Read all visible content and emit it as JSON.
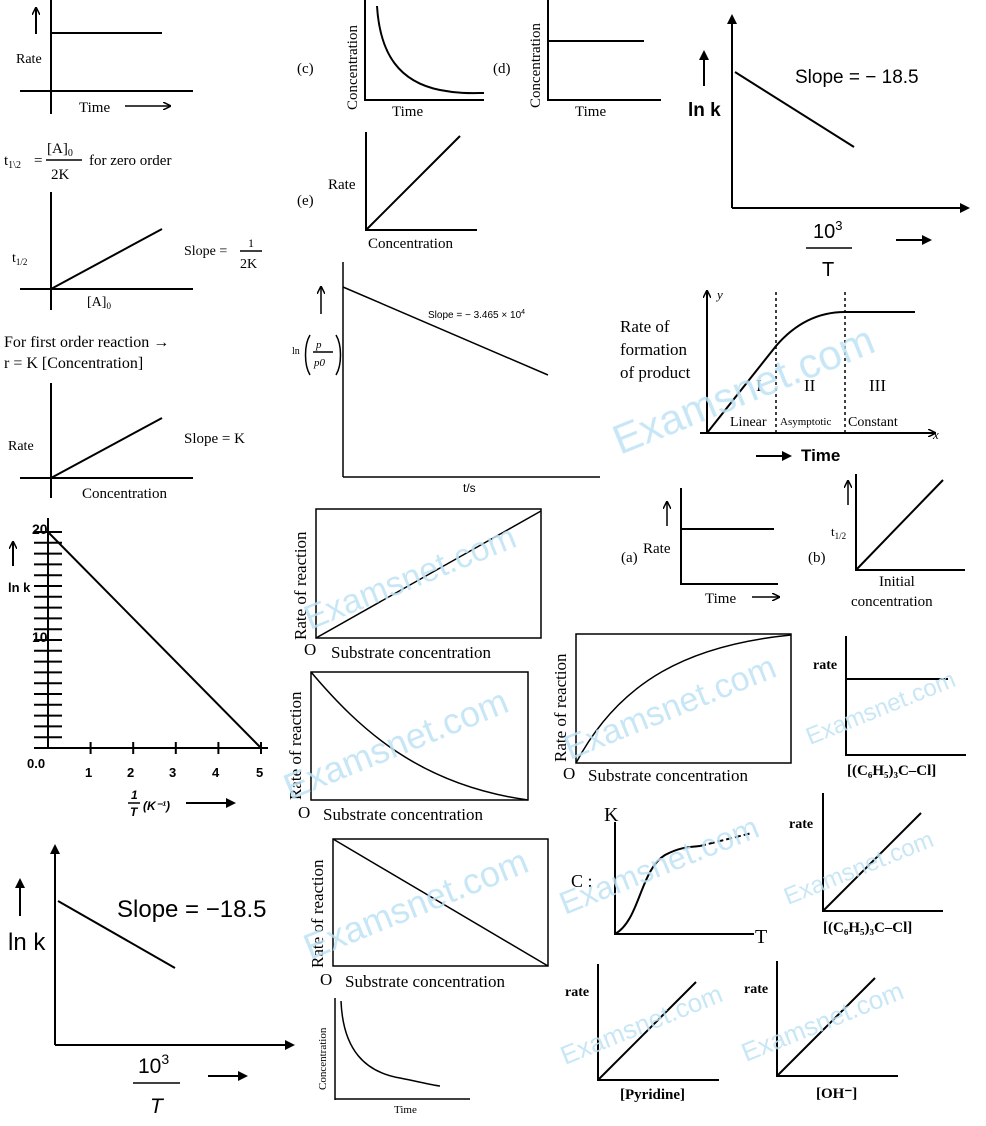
{
  "watermark": {
    "text": "Examsnet.com",
    "color": "#bfe3f5"
  },
  "p1": {
    "ylabel": "Rate",
    "xlabel": "Time"
  },
  "half_life": {
    "t": "t",
    "sub": "1\\2",
    "eq": "=",
    "num": "[A]",
    "num_sub": "0",
    "den": "2K",
    "note": "for  zero order"
  },
  "p2": {
    "ylabel": "t",
    "ylabel_sub": "1/2",
    "xlabel": "[A]",
    "xlabel_sub": "0",
    "slope": "Slope =",
    "slope_num": "1",
    "slope_den": "2K"
  },
  "first_order": {
    "line1": "For first order reaction →",
    "line2": "r = K [Concentration]"
  },
  "p3": {
    "ylabel": "Rate",
    "xlabel": "Concentration",
    "slope": "Slope = K"
  },
  "pc": {
    "tag": "(c)",
    "ylabel": "Concentration",
    "xlabel": "Time"
  },
  "pd": {
    "tag": "(d)",
    "ylabel": "Concentration",
    "xlabel": "Time"
  },
  "pe": {
    "tag": "(e)",
    "ylabel": "Rate",
    "xlabel": "Concentration"
  },
  "arr1": {
    "ylabel": "ln k",
    "slope": "Slope = − 18.5",
    "x_num": "10",
    "x_num_sup": "3",
    "x_den": "T"
  },
  "lnp": {
    "slope": "Slope = − 3.465 × 10",
    "slope_sup": "4",
    "ylabel_ln": "ln",
    "ylabel_p": "p",
    "ylabel_p0": "p0",
    "xlabel": "t/s"
  },
  "enzyme": {
    "ytitle1": "Rate of",
    "ytitle2": "formation",
    "ytitle3": "of product",
    "yaxis": "y",
    "xaxis": "x",
    "xlabel": "Time",
    "regions": [
      {
        "num": "I",
        "name": "Linear"
      },
      {
        "num": "II",
        "name": "Asymptotic"
      },
      {
        "num": "III",
        "name": "Constant"
      }
    ]
  },
  "pa": {
    "tag": "(a)",
    "ylabel": "Rate",
    "xlabel": "Time"
  },
  "pb": {
    "tag": "(b)",
    "ylabel": "t",
    "ylabel_sub": "1/2",
    "xlabel1": "Initial",
    "xlabel2": "concentration"
  },
  "lnk_chart": {
    "ylabel": "ln k",
    "xlabel_num": "1",
    "xlabel_den": "T",
    "xlabel_unit": "(K⁻¹)",
    "y_ticks": [
      "20",
      "10",
      "0.0"
    ],
    "x_ticks": [
      "1",
      "2",
      "3",
      "4",
      "5"
    ]
  },
  "sub1": {
    "ylabel": "Rate of reaction",
    "origin": "O",
    "xlabel": "Substrate concentration"
  },
  "sub2": {
    "ylabel": "Rate of reaction",
    "origin": "O",
    "xlabel": "Substrate concentration"
  },
  "sub3": {
    "ylabel": "Rate of reaction",
    "origin": "O",
    "xlabel": "Substrate concentration"
  },
  "sub4": {
    "ylabel": "Rate of reaction",
    "origin": "O",
    "xlabel": "Substrate concentration"
  },
  "trityl1": {
    "ylabel": "rate",
    "xlabel": "[(C₆H₅)₃C–Cl]"
  },
  "trityl2": {
    "ylabel": "rate",
    "xlabel": "[(C₆H₅)₃C–Cl]"
  },
  "kt": {
    "ylabel": "K",
    "xlabel": "T",
    "tag": "C :"
  },
  "arr2": {
    "ylabel": "ln k",
    "slope": "Slope = −18.5",
    "x_num": "10",
    "x_num_sup": "3",
    "x_den": "T"
  },
  "conc2": {
    "ylabel": "Concentration",
    "xlabel": "Time"
  },
  "pyr": {
    "ylabel": "rate",
    "xlabel": "[Pyridine]"
  },
  "oh": {
    "ylabel": "rate",
    "xlabel": "[OH⁻]"
  },
  "chart_data": {
    "type": "line",
    "xlabel": "1/T (K⁻¹)",
    "ylabel": "ln k",
    "x": [
      0,
      5
    ],
    "y": [
      20,
      0
    ],
    "xlim": [
      0,
      5
    ],
    "ylim": [
      0,
      20
    ],
    "x_ticks": [
      1,
      2,
      3,
      4,
      5
    ],
    "y_ticks": [
      0,
      10,
      20
    ]
  }
}
